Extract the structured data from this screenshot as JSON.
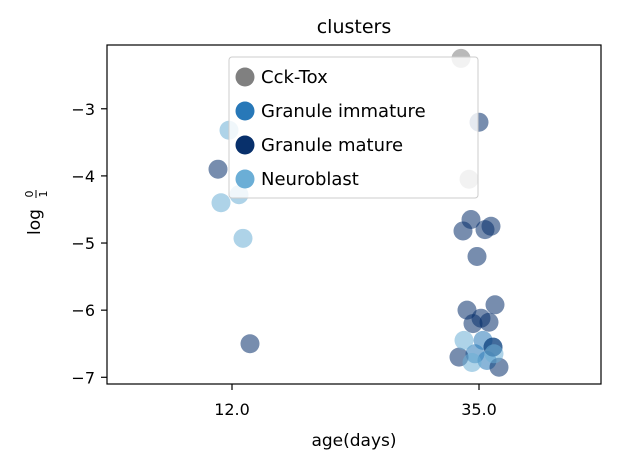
{
  "chart_data": {
    "type": "scatter",
    "title": "clusters",
    "xlabel": "age(days)",
    "ylabel": "log",
    "ylabel_fraction": {
      "numerator": "0",
      "denominator": "1"
    },
    "x_ticks": [
      "12.0",
      "35.0"
    ],
    "y_ticks": [
      -3,
      -4,
      -5,
      -6,
      -7
    ],
    "x_category_values": [
      12.0,
      35.0
    ],
    "ylim": [
      -7.1,
      -2.05
    ],
    "grid": false,
    "legend_position": "top-center",
    "series": [
      {
        "name": "Cck-Tox",
        "color": "#808080",
        "points": [
          {
            "x": 35.0,
            "y": -2.25
          },
          {
            "x": 35.0,
            "y": -4.05
          }
        ]
      },
      {
        "name": "Granule immature",
        "color": "#2878b8",
        "points": [
          {
            "x": 35.0,
            "y": -6.45
          },
          {
            "x": 35.0,
            "y": -6.55
          },
          {
            "x": 35.0,
            "y": -6.65
          },
          {
            "x": 35.0,
            "y": -6.75
          }
        ]
      },
      {
        "name": "Granule mature",
        "color": "#08306b",
        "points": [
          {
            "x": 12.0,
            "y": -3.9
          },
          {
            "x": 12.0,
            "y": -6.5
          },
          {
            "x": 35.0,
            "y": -3.2
          },
          {
            "x": 35.0,
            "y": -4.65
          },
          {
            "x": 35.0,
            "y": -4.75
          },
          {
            "x": 35.0,
            "y": -4.82
          },
          {
            "x": 35.0,
            "y": -4.8
          },
          {
            "x": 35.0,
            "y": -5.2
          },
          {
            "x": 35.0,
            "y": -5.92
          },
          {
            "x": 35.0,
            "y": -6.0
          },
          {
            "x": 35.0,
            "y": -6.12
          },
          {
            "x": 35.0,
            "y": -6.18
          },
          {
            "x": 35.0,
            "y": -6.2
          },
          {
            "x": 35.0,
            "y": -6.55
          },
          {
            "x": 35.0,
            "y": -6.7
          },
          {
            "x": 35.0,
            "y": -6.85
          }
        ]
      },
      {
        "name": "Neuroblast",
        "color": "#6baed6",
        "points": [
          {
            "x": 12.0,
            "y": -3.32
          },
          {
            "x": 12.0,
            "y": -4.28
          },
          {
            "x": 12.0,
            "y": -4.4
          },
          {
            "x": 12.0,
            "y": -4.93
          },
          {
            "x": 35.0,
            "y": -6.45
          },
          {
            "x": 35.0,
            "y": -6.65
          },
          {
            "x": 35.0,
            "y": -6.78
          }
        ]
      }
    ]
  }
}
